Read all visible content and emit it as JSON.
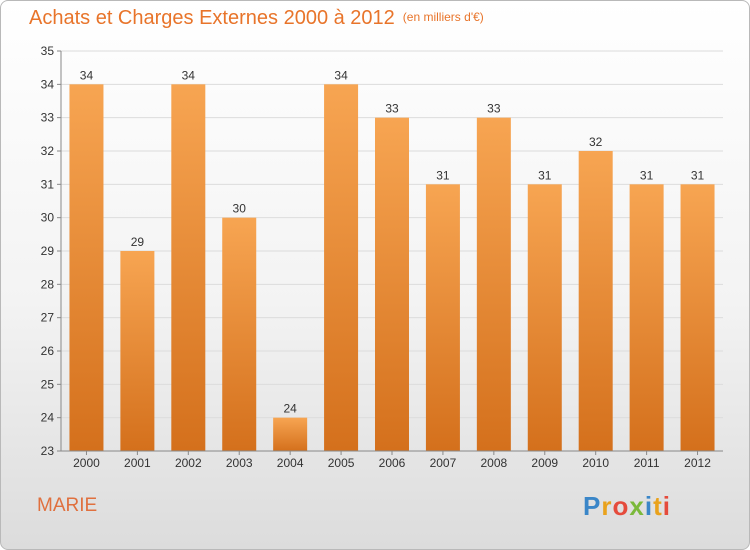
{
  "header": {
    "title": "Achats et Charges Externes 2000 à 2012",
    "unit": "(en milliers d'€)"
  },
  "footer": {
    "commune": "MARIE",
    "logo_letters": [
      "P",
      "r",
      "o",
      "x",
      "i",
      "t",
      "i"
    ]
  },
  "colors": {
    "bar_top": "#f7a552",
    "bar_bottom": "#d4701c",
    "title": "#e8742a",
    "commune": "#e0703e"
  },
  "chart_data": {
    "type": "bar",
    "title": "Achats et Charges Externes 2000 à 2012",
    "subtitle": "(en milliers d'€)",
    "categories": [
      "2000",
      "2001",
      "2002",
      "2003",
      "2004",
      "2005",
      "2006",
      "2007",
      "2008",
      "2009",
      "2010",
      "2011",
      "2012"
    ],
    "values": [
      34,
      29,
      34,
      30,
      24,
      34,
      33,
      31,
      33,
      31,
      32,
      31,
      31
    ],
    "ylim": [
      23,
      35
    ],
    "yticks": [
      23,
      24,
      25,
      26,
      27,
      28,
      29,
      30,
      31,
      32,
      33,
      34,
      35
    ],
    "grid": true,
    "data_labels": true
  }
}
